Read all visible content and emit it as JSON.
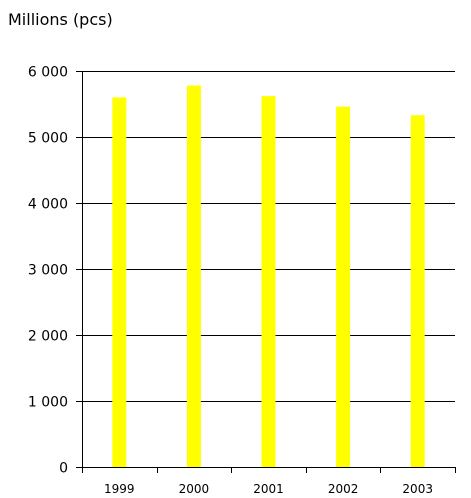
{
  "chart_data": {
    "type": "bar",
    "title": "",
    "ylabel": "Millions (pcs)",
    "xlabel": "",
    "categories": [
      "1999",
      "2000",
      "2001",
      "2002",
      "2003"
    ],
    "values": [
      5600,
      5780,
      5620,
      5460,
      5330
    ],
    "ylim": [
      0,
      6000
    ],
    "yticks": [
      0,
      1000,
      2000,
      3000,
      4000,
      5000,
      6000
    ],
    "ytick_labels": [
      "0",
      "1 000",
      "2 000",
      "3 000",
      "4 000",
      "5 000",
      "6 000"
    ],
    "grid": "horizontal",
    "bar_color": "#ffff00",
    "legend": "none"
  }
}
